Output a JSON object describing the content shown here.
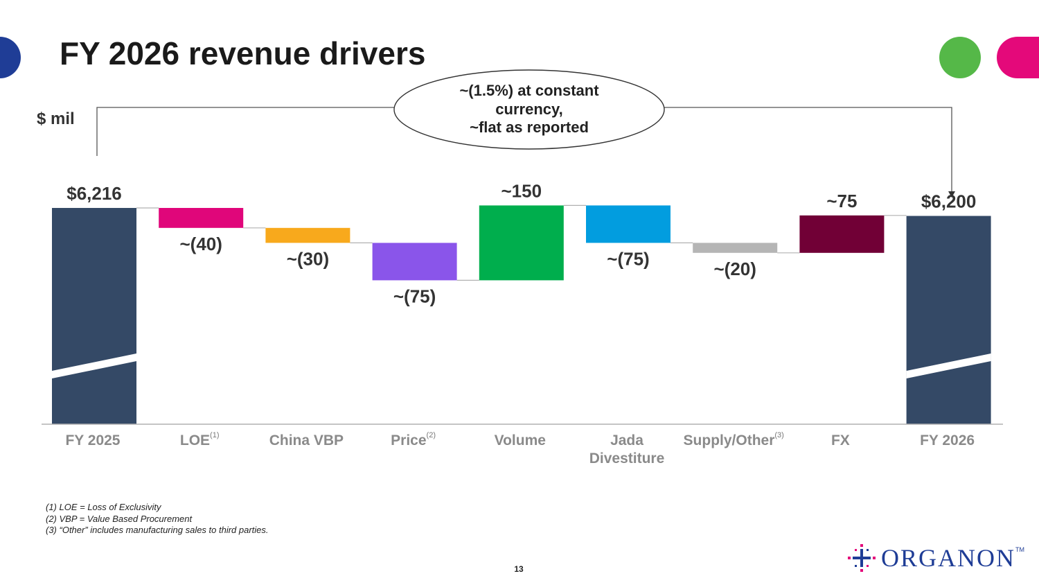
{
  "slide": {
    "title": "FY 2026 revenue drivers",
    "unit_label": "$ mil",
    "callout_lines": [
      "~(1.5%) at constant",
      "currency,",
      "~flat as reported"
    ],
    "footnotes": [
      "(1) LOE = Loss of Exclusivity",
      "(2) VBP = Value Based Procurement",
      "(3) “Other” includes manufacturing sales to third parties."
    ],
    "page_number": "13",
    "logo": {
      "text": "ORGANON",
      "tm": "TM",
      "icon": "organon-logo-icon"
    }
  },
  "chart_data": {
    "type": "bar",
    "subtype": "waterfall",
    "title": "FY 2026 revenue drivers",
    "ylabel": "$ mil",
    "categories": [
      "FY 2025",
      "LOE",
      "China VBP",
      "Price",
      "Volume",
      "Jada Divestiture",
      "Supply/Other",
      "FX",
      "FY 2026"
    ],
    "category_superscripts": [
      "",
      "(1)",
      "",
      "(2)",
      "",
      "",
      "(3)",
      "",
      ""
    ],
    "values": [
      6216,
      -40,
      -30,
      -75,
      150,
      -75,
      -20,
      75,
      6200
    ],
    "value_labels": [
      "$6,216",
      "~(40)",
      "~(30)",
      "~(75)",
      "~150",
      "~(75)",
      "~(20)",
      "~75",
      "$6,200"
    ],
    "bar_kinds": [
      "total",
      "delta",
      "delta",
      "delta",
      "delta",
      "delta",
      "delta",
      "delta",
      "total"
    ],
    "axis_break": true,
    "colors": [
      "#344966",
      "#e0067a",
      "#f8a91c",
      "#8a55ea",
      "#00ae4d",
      "#029ddf",
      "#b5b5b5",
      "#710036",
      "#344966"
    ],
    "grid": false,
    "legend": "none"
  }
}
